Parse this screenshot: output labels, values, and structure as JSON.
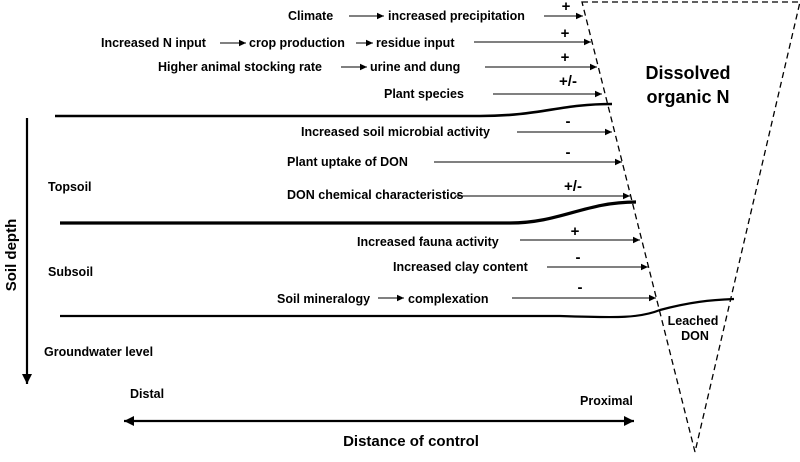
{
  "factors": {
    "climate": {
      "cause": "Climate",
      "effect": "increased precipitation",
      "sign": "+"
    },
    "n_input": {
      "cause": "Increased N input",
      "middle": "crop production",
      "effect": "residue input",
      "sign": "+"
    },
    "stocking": {
      "cause": "Higher animal stocking rate",
      "effect": "urine and dung",
      "sign": "+"
    },
    "plant_species": {
      "label": "Plant species",
      "sign": "+/-"
    },
    "microbial": {
      "label": "Increased soil microbial activity",
      "sign": "-"
    },
    "plant_uptake": {
      "label": "Plant uptake of DON",
      "sign": "-"
    },
    "don_chem": {
      "label": "DON chemical characteristics",
      "sign": "+/-"
    },
    "fauna": {
      "label": "Increased fauna activity",
      "sign": "+"
    },
    "clay": {
      "label": "Increased clay content",
      "sign": "-"
    },
    "mineralogy": {
      "cause": "Soil mineralogy",
      "effect": "complexation",
      "sign": "-"
    }
  },
  "pool": {
    "title_line1": "Dissolved",
    "title_line2": "organic N",
    "leached_line1": "Leached",
    "leached_line2": "DON"
  },
  "layers": {
    "topsoil": "Topsoil",
    "subsoil": "Subsoil",
    "groundwater": "Groundwater level"
  },
  "axes": {
    "soil_depth": "Soil depth",
    "distal": "Distal",
    "proximal": "Proximal",
    "distance": "Distance of control"
  }
}
